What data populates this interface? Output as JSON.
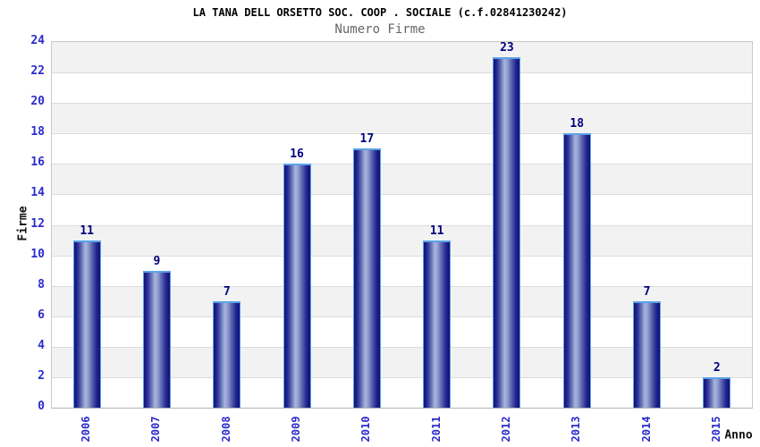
{
  "chart_data": {
    "type": "bar",
    "title": "LA TANA DELL ORSETTO SOC. COOP . SOCIALE (c.f.02841230242)",
    "subtitle": "Numero Firme",
    "xlabel": "Anno",
    "ylabel": "Firme",
    "categories": [
      "2006",
      "2007",
      "2008",
      "2009",
      "2010",
      "2011",
      "2012",
      "2013",
      "2014",
      "2015"
    ],
    "values": [
      11,
      9,
      7,
      16,
      17,
      11,
      23,
      18,
      7,
      2
    ],
    "ylim": [
      0,
      24
    ],
    "ytick_step": 2,
    "grid": true,
    "legend": "none",
    "band_colors": [
      "#f2f2f2",
      "#ffffff"
    ],
    "gridline_color": "#dcdcdc",
    "bar_edge_color": "#5aa2e8",
    "bar_dark_color": "#0f0f78",
    "bar_light_color": "#a9b3dc",
    "value_label_color": "#000080",
    "tick_label_color": "#2b2bcc",
    "title_color": "#000000",
    "subtitle_color": "#666666",
    "axis_label_color": "#111111"
  }
}
